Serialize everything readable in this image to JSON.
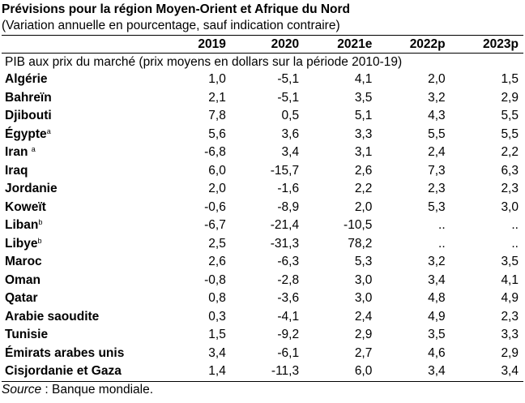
{
  "title": "Prévisions pour la région Moyen-Orient et Afrique du Nord",
  "subtitle": "(Variation annuelle en pourcentage, sauf indication contraire)",
  "columns": [
    "2019",
    "2020",
    "2021e",
    "2022p",
    "2023p"
  ],
  "section_label": "PIB aux prix du marché (prix moyens en dollars sur la période 2010-19)",
  "rows": [
    {
      "country": "Algérie",
      "sup": "",
      "values": [
        "1,0",
        "-5,1",
        "4,1",
        "2,0",
        "1,5"
      ]
    },
    {
      "country": "Bahreïn",
      "sup": "",
      "values": [
        "2,1",
        "-5,1",
        "3,5",
        "3,2",
        "2,9"
      ]
    },
    {
      "country": "Djibouti",
      "sup": "",
      "values": [
        "7,8",
        "0,5",
        "5,1",
        "4,3",
        "5,5"
      ]
    },
    {
      "country": "Égypte",
      "sup": "a",
      "values": [
        "5,6",
        "3,6",
        "3,3",
        "5,5",
        "5,5"
      ]
    },
    {
      "country": "Iran ",
      "sup": "a",
      "values": [
        "-6,8",
        "3,4",
        "3,1",
        "2,4",
        "2,2"
      ]
    },
    {
      "country": "Iraq",
      "sup": "",
      "values": [
        "6,0",
        "-15,7",
        "2,6",
        "7,3",
        "6,3"
      ]
    },
    {
      "country": "Jordanie",
      "sup": "",
      "values": [
        "2,0",
        "-1,6",
        "2,2",
        "2,3",
        "2,3"
      ]
    },
    {
      "country": "Koweït",
      "sup": "",
      "values": [
        "-0,6",
        "-8,9",
        "2,0",
        "5,3",
        "3,0"
      ]
    },
    {
      "country": "Liban",
      "sup": "b",
      "values": [
        "-6,7",
        "-21,4",
        "-10,5",
        "..",
        ".."
      ]
    },
    {
      "country": "Libye",
      "sup": "b",
      "values": [
        "2,5",
        "-31,3",
        "78,2",
        "..",
        ".."
      ]
    },
    {
      "country": "Maroc",
      "sup": "",
      "values": [
        "2,6",
        "-6,3",
        "5,3",
        "3,2",
        "3,5"
      ]
    },
    {
      "country": "Oman",
      "sup": "",
      "values": [
        "-0,8",
        "-2,8",
        "3,0",
        "3,4",
        "4,1"
      ]
    },
    {
      "country": "Qatar",
      "sup": "",
      "values": [
        "0,8",
        "-3,6",
        "3,0",
        "4,8",
        "4,9"
      ]
    },
    {
      "country": "Arabie saoudite",
      "sup": "",
      "values": [
        "0,3",
        "-4,1",
        "2,4",
        "4,9",
        "2,3"
      ]
    },
    {
      "country": "Tunisie",
      "sup": "",
      "values": [
        "1,5",
        "-9,2",
        "2,9",
        "3,5",
        "3,3"
      ]
    },
    {
      "country": "Émirats arabes unis",
      "sup": "",
      "values": [
        "3,4",
        "-6,1",
        "2,7",
        "4,6",
        "2,9"
      ]
    },
    {
      "country": "Cisjordanie et Gaza",
      "sup": "",
      "values": [
        "1,4",
        "-11,3",
        "6,0",
        "3,4",
        "3,4"
      ]
    }
  ],
  "source": {
    "label": "Source",
    "text": " : Banque mondiale."
  }
}
